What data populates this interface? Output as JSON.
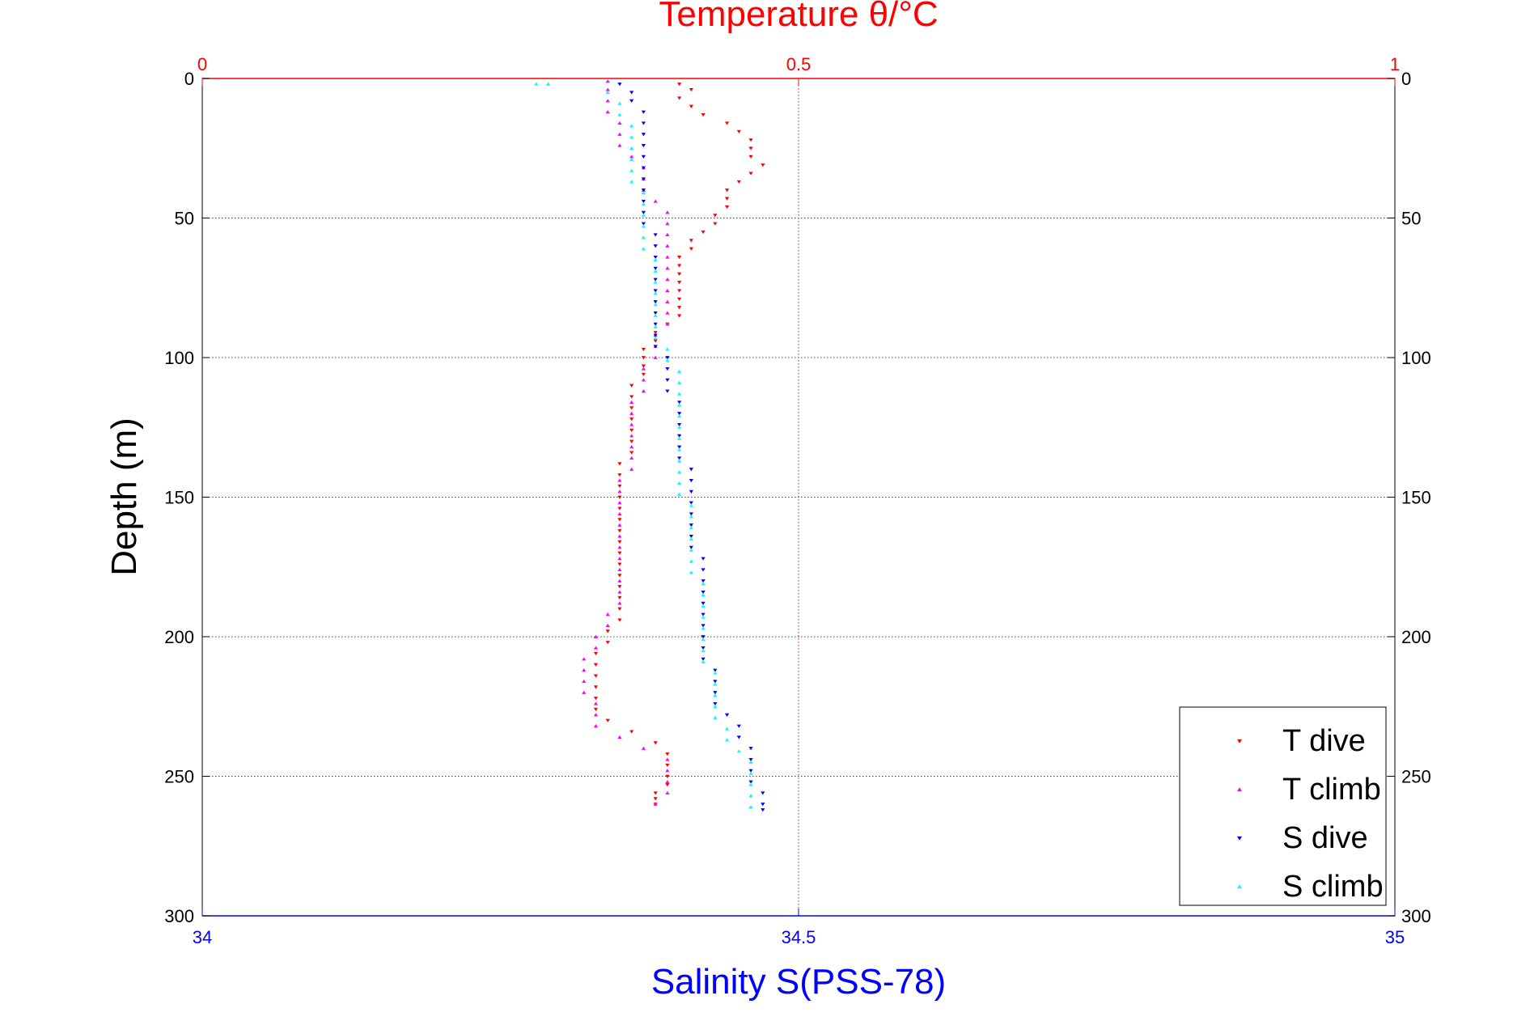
{
  "chart_data": {
    "type": "scatter",
    "title": "Temperature θ/°C",
    "xlabel": "Salinity S(PSS-78)",
    "ylabel": "Depth (m)",
    "top_axis": {
      "label": "Temperature θ/°C",
      "range": [
        0,
        1
      ],
      "ticks": [
        "0",
        "0.5",
        "1"
      ],
      "color": "#ff0000"
    },
    "bottom_axis": {
      "label": "Salinity S(PSS-78)",
      "range": [
        34,
        35
      ],
      "ticks": [
        "34",
        "34.5",
        "35"
      ],
      "color": "#0000ff"
    },
    "y_axis": {
      "label": "Depth (m)",
      "range": [
        0,
        300
      ],
      "reversed": true,
      "ticks": [
        "0",
        "50",
        "100",
        "150",
        "200",
        "250",
        "300"
      ]
    },
    "grid": true,
    "legend_position": "bottom-right",
    "legend": [
      "T dive",
      "T climb",
      "S dive",
      "S climb"
    ],
    "series": [
      {
        "name": "T dive",
        "axis": "top",
        "marker": "triangle-down",
        "color": "#ff0000",
        "points": [
          [
            0.4,
            2
          ],
          [
            0.41,
            4
          ],
          [
            0.4,
            7
          ],
          [
            0.41,
            10
          ],
          [
            0.42,
            13
          ],
          [
            0.44,
            16
          ],
          [
            0.45,
            19
          ],
          [
            0.46,
            22
          ],
          [
            0.46,
            25
          ],
          [
            0.46,
            28
          ],
          [
            0.47,
            31
          ],
          [
            0.46,
            34
          ],
          [
            0.45,
            37
          ],
          [
            0.44,
            40
          ],
          [
            0.44,
            43
          ],
          [
            0.44,
            46
          ],
          [
            0.43,
            49
          ],
          [
            0.43,
            52
          ],
          [
            0.42,
            55
          ],
          [
            0.41,
            58
          ],
          [
            0.41,
            61
          ],
          [
            0.4,
            64
          ],
          [
            0.4,
            67
          ],
          [
            0.4,
            70
          ],
          [
            0.4,
            73
          ],
          [
            0.4,
            76
          ],
          [
            0.4,
            79
          ],
          [
            0.4,
            82
          ],
          [
            0.4,
            85
          ],
          [
            0.39,
            88
          ],
          [
            0.38,
            91
          ],
          [
            0.38,
            94
          ],
          [
            0.37,
            97
          ],
          [
            0.37,
            100
          ],
          [
            0.37,
            103
          ],
          [
            0.37,
            106
          ],
          [
            0.36,
            110
          ],
          [
            0.36,
            114
          ],
          [
            0.36,
            118
          ],
          [
            0.36,
            122
          ],
          [
            0.36,
            126
          ],
          [
            0.36,
            130
          ],
          [
            0.36,
            134
          ],
          [
            0.35,
            138
          ],
          [
            0.35,
            142
          ],
          [
            0.35,
            146
          ],
          [
            0.35,
            150
          ],
          [
            0.35,
            154
          ],
          [
            0.35,
            158
          ],
          [
            0.35,
            162
          ],
          [
            0.35,
            166
          ],
          [
            0.35,
            170
          ],
          [
            0.35,
            174
          ],
          [
            0.35,
            178
          ],
          [
            0.35,
            182
          ],
          [
            0.35,
            186
          ],
          [
            0.35,
            190
          ],
          [
            0.35,
            194
          ],
          [
            0.34,
            198
          ],
          [
            0.34,
            202
          ],
          [
            0.33,
            206
          ],
          [
            0.33,
            210
          ],
          [
            0.33,
            214
          ],
          [
            0.33,
            218
          ],
          [
            0.33,
            222
          ],
          [
            0.33,
            226
          ],
          [
            0.34,
            230
          ],
          [
            0.36,
            234
          ],
          [
            0.38,
            238
          ],
          [
            0.39,
            242
          ],
          [
            0.39,
            246
          ],
          [
            0.39,
            250
          ],
          [
            0.39,
            253
          ],
          [
            0.38,
            256
          ],
          [
            0.38,
            258
          ],
          [
            0.38,
            260
          ]
        ]
      },
      {
        "name": "T climb",
        "axis": "top",
        "marker": "triangle-up",
        "color": "#ff00ff",
        "points": [
          [
            0.38,
            260
          ],
          [
            0.39,
            256
          ],
          [
            0.39,
            252
          ],
          [
            0.39,
            248
          ],
          [
            0.39,
            244
          ],
          [
            0.37,
            240
          ],
          [
            0.35,
            236
          ],
          [
            0.33,
            232
          ],
          [
            0.33,
            228
          ],
          [
            0.33,
            224
          ],
          [
            0.32,
            220
          ],
          [
            0.32,
            216
          ],
          [
            0.32,
            212
          ],
          [
            0.32,
            208
          ],
          [
            0.33,
            204
          ],
          [
            0.33,
            200
          ],
          [
            0.34,
            196
          ],
          [
            0.34,
            192
          ],
          [
            0.35,
            188
          ],
          [
            0.35,
            184
          ],
          [
            0.35,
            180
          ],
          [
            0.35,
            176
          ],
          [
            0.35,
            172
          ],
          [
            0.35,
            168
          ],
          [
            0.35,
            164
          ],
          [
            0.35,
            160
          ],
          [
            0.35,
            156
          ],
          [
            0.35,
            152
          ],
          [
            0.35,
            148
          ],
          [
            0.35,
            144
          ],
          [
            0.36,
            140
          ],
          [
            0.36,
            136
          ],
          [
            0.36,
            132
          ],
          [
            0.36,
            128
          ],
          [
            0.36,
            124
          ],
          [
            0.36,
            120
          ],
          [
            0.36,
            116
          ],
          [
            0.37,
            112
          ],
          [
            0.37,
            108
          ],
          [
            0.37,
            104
          ],
          [
            0.38,
            100
          ],
          [
            0.38,
            96
          ],
          [
            0.38,
            92
          ],
          [
            0.39,
            88
          ],
          [
            0.39,
            84
          ],
          [
            0.39,
            80
          ],
          [
            0.39,
            76
          ],
          [
            0.39,
            72
          ],
          [
            0.39,
            68
          ],
          [
            0.39,
            64
          ],
          [
            0.39,
            60
          ],
          [
            0.39,
            56
          ],
          [
            0.39,
            52
          ],
          [
            0.39,
            48
          ],
          [
            0.38,
            44
          ],
          [
            0.37,
            40
          ],
          [
            0.37,
            36
          ],
          [
            0.37,
            32
          ],
          [
            0.36,
            28
          ],
          [
            0.35,
            24
          ],
          [
            0.35,
            20
          ],
          [
            0.35,
            16
          ],
          [
            0.34,
            12
          ],
          [
            0.34,
            8
          ],
          [
            0.34,
            4
          ],
          [
            0.34,
            1
          ]
        ]
      },
      {
        "name": "S dive",
        "axis": "bottom",
        "marker": "triangle-down",
        "color": "#0000ff",
        "points": [
          [
            34.35,
            2
          ],
          [
            34.36,
            5
          ],
          [
            34.36,
            8
          ],
          [
            34.37,
            12
          ],
          [
            34.37,
            16
          ],
          [
            34.37,
            20
          ],
          [
            34.37,
            24
          ],
          [
            34.37,
            28
          ],
          [
            34.37,
            32
          ],
          [
            34.37,
            36
          ],
          [
            34.37,
            40
          ],
          [
            34.37,
            44
          ],
          [
            34.37,
            48
          ],
          [
            34.37,
            52
          ],
          [
            34.38,
            56
          ],
          [
            34.38,
            60
          ],
          [
            34.38,
            64
          ],
          [
            34.38,
            68
          ],
          [
            34.38,
            72
          ],
          [
            34.38,
            76
          ],
          [
            34.38,
            80
          ],
          [
            34.38,
            84
          ],
          [
            34.38,
            88
          ],
          [
            34.38,
            92
          ],
          [
            34.38,
            96
          ],
          [
            34.39,
            100
          ],
          [
            34.39,
            104
          ],
          [
            34.39,
            108
          ],
          [
            34.39,
            112
          ],
          [
            34.4,
            116
          ],
          [
            34.4,
            120
          ],
          [
            34.4,
            124
          ],
          [
            34.4,
            128
          ],
          [
            34.4,
            132
          ],
          [
            34.4,
            136
          ],
          [
            34.41,
            140
          ],
          [
            34.41,
            144
          ],
          [
            34.41,
            148
          ],
          [
            34.41,
            152
          ],
          [
            34.41,
            156
          ],
          [
            34.41,
            160
          ],
          [
            34.41,
            164
          ],
          [
            34.41,
            168
          ],
          [
            34.42,
            172
          ],
          [
            34.42,
            176
          ],
          [
            34.42,
            180
          ],
          [
            34.42,
            184
          ],
          [
            34.42,
            188
          ],
          [
            34.42,
            192
          ],
          [
            34.42,
            196
          ],
          [
            34.42,
            200
          ],
          [
            34.42,
            204
          ],
          [
            34.42,
            208
          ],
          [
            34.43,
            212
          ],
          [
            34.43,
            216
          ],
          [
            34.43,
            220
          ],
          [
            34.43,
            224
          ],
          [
            34.44,
            228
          ],
          [
            34.45,
            232
          ],
          [
            34.45,
            236
          ],
          [
            34.46,
            240
          ],
          [
            34.46,
            244
          ],
          [
            34.46,
            248
          ],
          [
            34.46,
            252
          ],
          [
            34.47,
            256
          ],
          [
            34.47,
            260
          ],
          [
            34.47,
            262
          ]
        ]
      },
      {
        "name": "S climb",
        "axis": "bottom",
        "marker": "triangle-up",
        "color": "#00ffff",
        "points": [
          [
            34.46,
            261
          ],
          [
            34.46,
            257
          ],
          [
            34.46,
            253
          ],
          [
            34.46,
            249
          ],
          [
            34.46,
            245
          ],
          [
            34.45,
            241
          ],
          [
            34.44,
            237
          ],
          [
            34.44,
            233
          ],
          [
            34.43,
            229
          ],
          [
            34.43,
            225
          ],
          [
            34.43,
            221
          ],
          [
            34.43,
            217
          ],
          [
            34.43,
            213
          ],
          [
            34.42,
            209
          ],
          [
            34.42,
            205
          ],
          [
            34.42,
            201
          ],
          [
            34.42,
            197
          ],
          [
            34.42,
            193
          ],
          [
            34.42,
            189
          ],
          [
            34.42,
            185
          ],
          [
            34.42,
            181
          ],
          [
            34.41,
            177
          ],
          [
            34.41,
            173
          ],
          [
            34.41,
            169
          ],
          [
            34.41,
            165
          ],
          [
            34.41,
            161
          ],
          [
            34.41,
            157
          ],
          [
            34.41,
            153
          ],
          [
            34.4,
            149
          ],
          [
            34.4,
            145
          ],
          [
            34.4,
            141
          ],
          [
            34.4,
            137
          ],
          [
            34.4,
            133
          ],
          [
            34.4,
            129
          ],
          [
            34.4,
            125
          ],
          [
            34.4,
            121
          ],
          [
            34.4,
            117
          ],
          [
            34.4,
            113
          ],
          [
            34.4,
            109
          ],
          [
            34.4,
            105
          ],
          [
            34.39,
            101
          ],
          [
            34.39,
            97
          ],
          [
            34.38,
            93
          ],
          [
            34.38,
            89
          ],
          [
            34.38,
            85
          ],
          [
            34.38,
            81
          ],
          [
            34.38,
            77
          ],
          [
            34.38,
            73
          ],
          [
            34.38,
            69
          ],
          [
            34.38,
            65
          ],
          [
            34.37,
            61
          ],
          [
            34.37,
            57
          ],
          [
            34.37,
            53
          ],
          [
            34.37,
            49
          ],
          [
            34.37,
            45
          ],
          [
            34.37,
            41
          ],
          [
            34.36,
            37
          ],
          [
            34.36,
            33
          ],
          [
            34.36,
            29
          ],
          [
            34.36,
            25
          ],
          [
            34.36,
            21
          ],
          [
            34.36,
            17
          ],
          [
            34.35,
            13
          ],
          [
            34.35,
            9
          ],
          [
            34.34,
            5
          ],
          [
            34.29,
            2
          ],
          [
            34.28,
            2
          ]
        ]
      }
    ]
  }
}
